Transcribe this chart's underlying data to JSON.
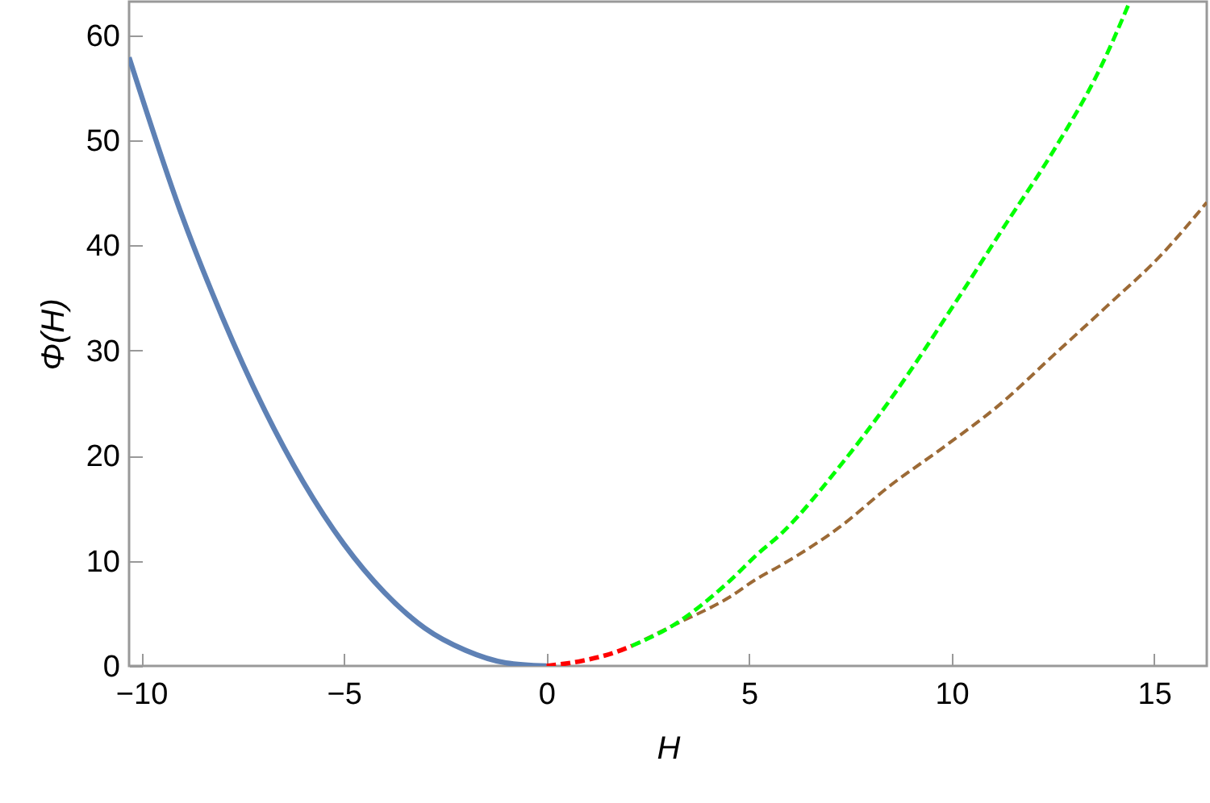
{
  "chart_data": {
    "type": "line",
    "xlabel": "H",
    "ylabel": "Φ(H)",
    "xlim": [
      -10.3,
      16.3
    ],
    "ylim": [
      0,
      63.2
    ],
    "xticks": [
      -10,
      -5,
      0,
      5,
      10,
      15
    ],
    "yticks": [
      0,
      10,
      20,
      30,
      40,
      50,
      60
    ],
    "grid": false,
    "series": [
      {
        "color": "#5e81b5",
        "line_style": "solid",
        "x": [
          -10.3,
          -9,
          -8,
          -7,
          -6,
          -5,
          -4,
          -3,
          -2,
          -1,
          0
        ],
        "values": [
          57.9,
          42.9,
          33.2,
          24.7,
          17.5,
          11.6,
          7.0,
          3.6,
          1.5,
          0.3,
          0
        ]
      },
      {
        "color": "#ff0000",
        "line_style": "dashed",
        "x": [
          0,
          0.9,
          1.7,
          2.1
        ],
        "values": [
          0,
          0.5,
          1.3,
          1.9
        ]
      },
      {
        "color": "#00ff00",
        "line_style": "dashed",
        "x": [
          2.1,
          3.1,
          4.5,
          5.2,
          5.8,
          7.2,
          8.5,
          10.1,
          11.3,
          12.5,
          13.7,
          14.4
        ],
        "values": [
          1.9,
          3.8,
          8.0,
          10.6,
          12.6,
          18.8,
          25.4,
          34.6,
          41.8,
          48.9,
          57.1,
          63.2
        ]
      },
      {
        "color": "#9c6a36",
        "line_style": "dashed",
        "x": [
          2.1,
          3.1,
          4.5,
          5.2,
          5.8,
          7.2,
          8.5,
          9.8,
          11.2,
          12.5,
          13.8,
          15.2,
          16.3
        ],
        "values": [
          1.9,
          3.8,
          6.5,
          8.3,
          9.6,
          13.1,
          17.2,
          20.8,
          24.9,
          29.5,
          34.1,
          39.2,
          44.1
        ]
      }
    ]
  }
}
